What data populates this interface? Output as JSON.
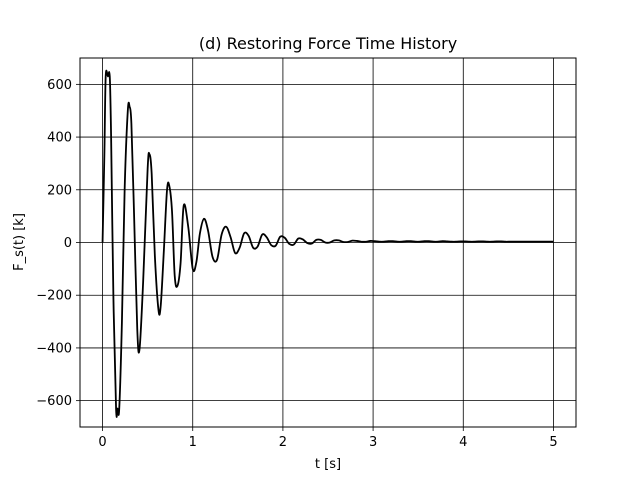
{
  "chart_data": {
    "type": "line",
    "title": "(d) Restoring Force Time History",
    "xlabel": "t [s]",
    "ylabel": "F_s(t) [k]",
    "xlim": [
      -0.25,
      5.25
    ],
    "ylim": [
      -700,
      700
    ],
    "xticks": [
      0,
      1,
      2,
      3,
      4,
      5
    ],
    "xtick_labels": [
      "0",
      "1",
      "2",
      "3",
      "4",
      "5"
    ],
    "yticks": [
      -600,
      -400,
      -200,
      0,
      200,
      400,
      600
    ],
    "ytick_labels": [
      "−600",
      "−400",
      "−200",
      "0",
      "200",
      "400",
      "600"
    ],
    "grid": true,
    "line_color": "#000000",
    "series": [
      {
        "x": [
          0,
          0.02,
          0.035,
          0.06,
          0.08,
          0.095,
          0.12,
          0.15,
          0.165,
          0.185,
          0.215,
          0.245,
          0.28,
          0.3,
          0.32,
          0.35,
          0.385,
          0.41,
          0.45,
          0.5,
          0.52,
          0.545,
          0.58,
          0.62,
          0.645,
          0.68,
          0.715,
          0.74,
          0.77,
          0.8,
          0.83,
          0.865,
          0.9,
          0.95,
          1.0,
          1.04,
          1.08,
          1.125,
          1.17,
          1.22,
          1.27,
          1.32,
          1.37,
          1.42,
          1.47,
          1.52,
          1.57,
          1.62,
          1.67,
          1.72,
          1.77,
          1.82,
          1.87,
          1.92,
          1.97,
          2.02,
          2.07,
          2.12,
          2.17,
          2.22,
          2.27,
          2.32,
          2.37,
          2.42,
          2.47,
          2.52,
          2.57,
          2.62,
          2.67,
          2.72,
          2.77,
          2.82,
          2.87,
          2.92,
          2.97,
          3.02,
          3.07,
          3.12,
          3.17,
          3.22,
          3.27,
          3.32,
          3.37,
          3.42,
          3.47,
          3.52,
          3.57,
          3.62,
          3.67,
          3.72,
          3.77,
          3.82,
          3.87,
          3.92,
          3.97,
          4.02,
          4.07,
          4.12,
          4.17,
          4.22,
          4.27,
          4.32,
          4.37,
          4.42,
          4.47,
          4.52,
          5.0
        ],
        "y": [
          0,
          330,
          630,
          630,
          630,
          400,
          -200,
          -630,
          -630,
          -630,
          -300,
          200,
          500,
          515,
          450,
          100,
          -330,
          -405,
          -150,
          280,
          335,
          260,
          -50,
          -255,
          -240,
          -30,
          200,
          215,
          120,
          -125,
          -165,
          -80,
          140,
          60,
          -100,
          -75,
          35,
          90,
          45,
          -55,
          -65,
          30,
          60,
          20,
          -40,
          -20,
          35,
          25,
          -20,
          -15,
          30,
          20,
          -10,
          -12,
          22,
          18,
          -5,
          -8,
          15,
          12,
          -2,
          -4,
          10,
          10,
          0,
          0,
          8,
          8,
          2,
          2,
          7,
          6,
          3,
          3,
          6,
          5,
          3,
          3,
          5,
          5,
          3,
          3,
          5,
          5,
          3,
          3,
          5,
          5,
          3,
          3,
          5,
          4,
          3,
          3,
          4,
          4,
          3,
          3,
          4,
          4,
          3,
          3,
          4,
          4,
          3,
          3,
          3
        ]
      }
    ]
  }
}
